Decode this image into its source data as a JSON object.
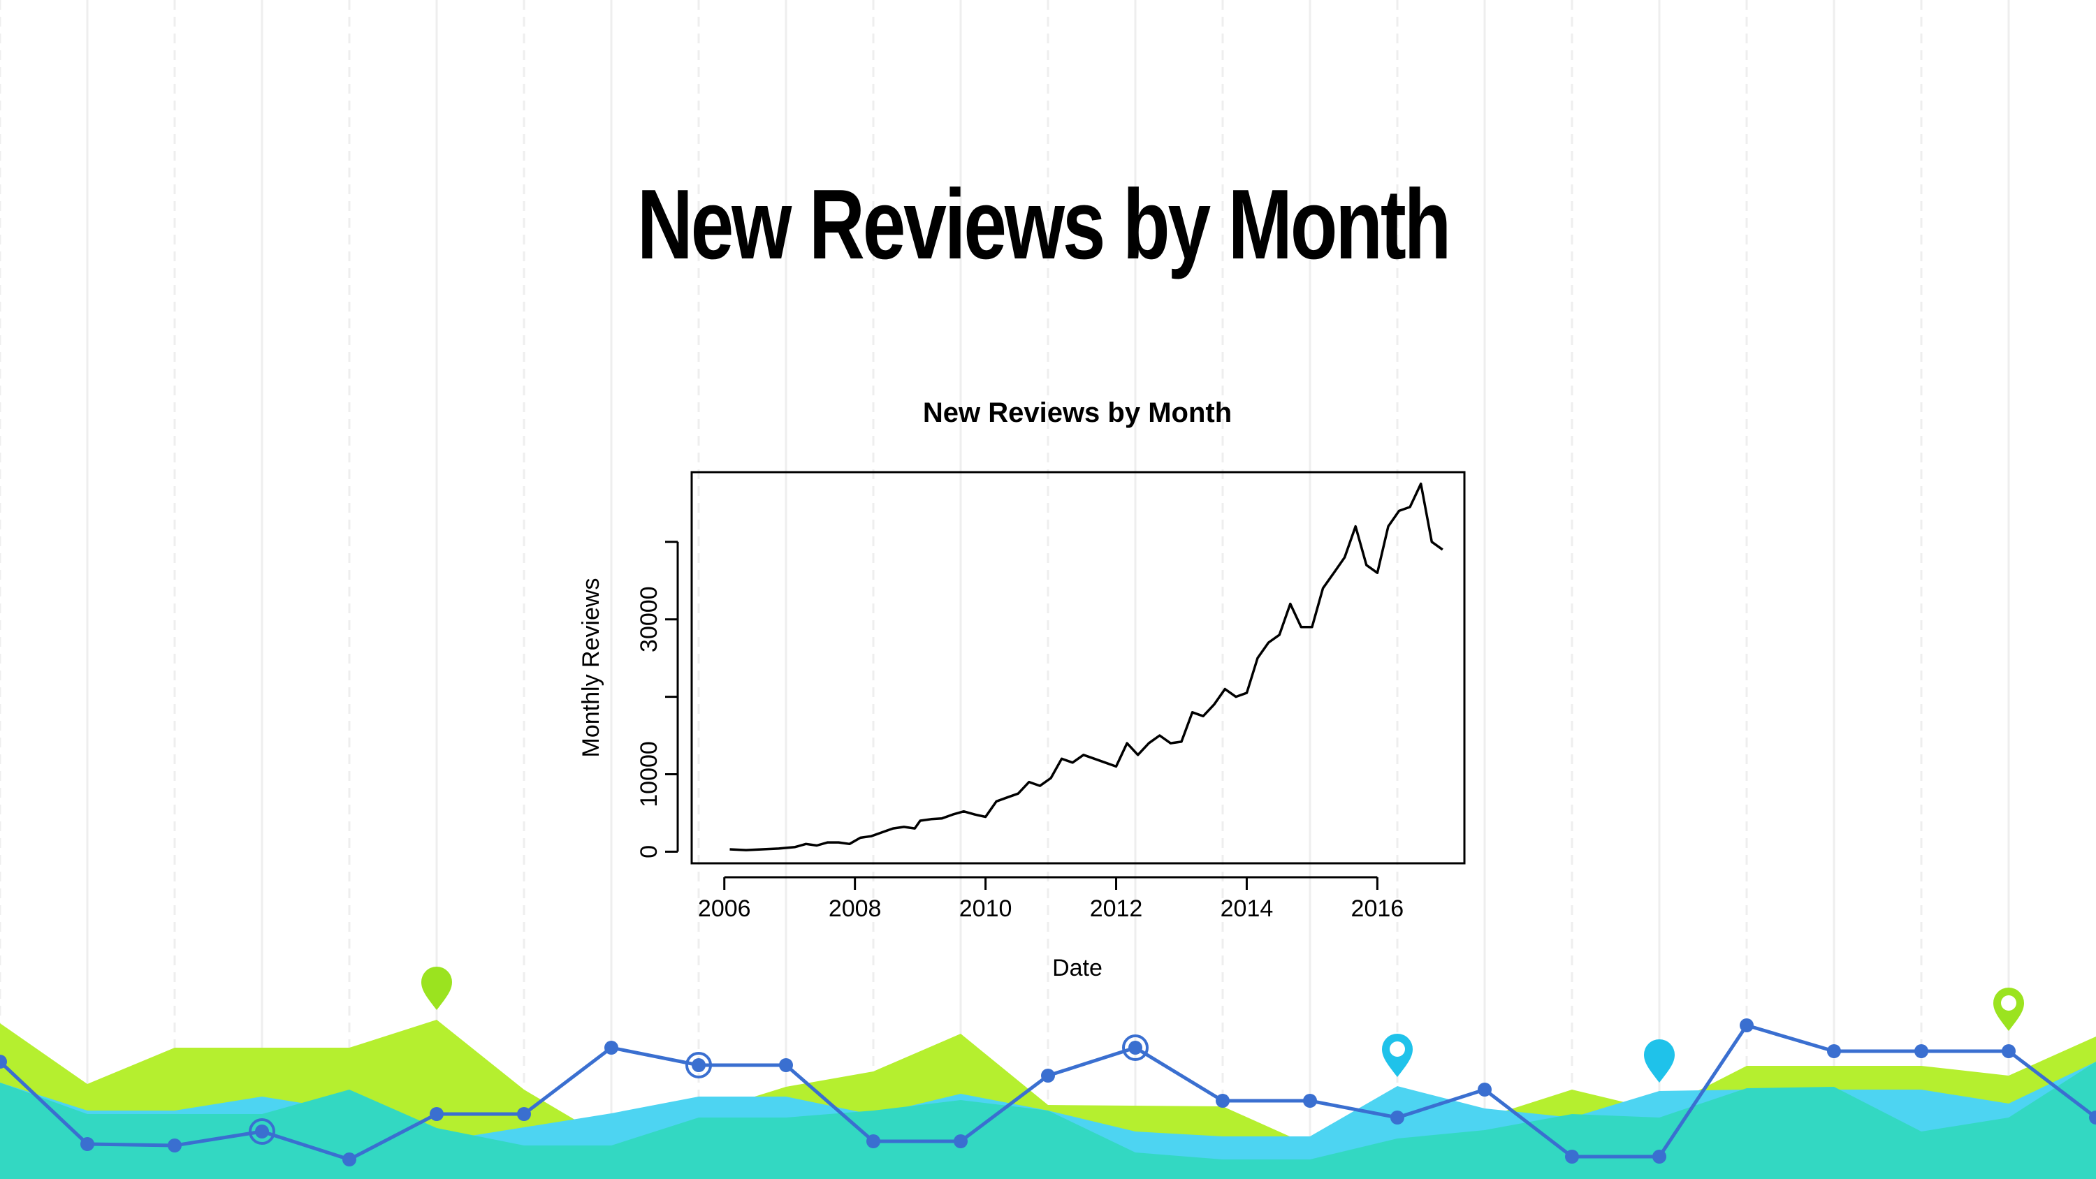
{
  "slide": {
    "title": "New Reviews by Month"
  },
  "chart_data": {
    "type": "line",
    "title": "New Reviews by Month",
    "xlabel": "Date",
    "ylabel": "Monthly Reviews",
    "x_ticks": [
      "2006",
      "2008",
      "2010",
      "2012",
      "2014",
      "2016"
    ],
    "y_ticks": [
      "0",
      "10000",
      "30000"
    ],
    "xlim": [
      "2005-07",
      "2017-05"
    ],
    "ylim": [
      -1500,
      49000
    ],
    "grid": false,
    "series": [
      {
        "color": "#000000",
        "x": [
          "2006-02",
          "2006-05",
          "2006-08",
          "2006-11",
          "2007-02",
          "2007-04",
          "2007-06",
          "2007-08",
          "2007-10",
          "2007-12",
          "2008-02",
          "2008-04",
          "2008-06",
          "2008-08",
          "2008-10",
          "2008-12",
          "2009-01",
          "2009-03",
          "2009-05",
          "2009-07",
          "2009-09",
          "2009-11",
          "2010-01",
          "2010-03",
          "2010-05",
          "2010-07",
          "2010-09",
          "2010-11",
          "2011-01",
          "2011-03",
          "2011-05",
          "2011-07",
          "2011-09",
          "2011-11",
          "2012-01",
          "2012-03",
          "2012-05",
          "2012-07",
          "2012-09",
          "2012-11",
          "2013-01",
          "2013-03",
          "2013-05",
          "2013-07",
          "2013-09",
          "2013-11",
          "2014-01",
          "2014-03",
          "2014-05",
          "2014-07",
          "2014-09",
          "2014-11",
          "2015-01",
          "2015-03",
          "2015-05",
          "2015-07",
          "2015-09",
          "2015-11",
          "2016-01",
          "2016-03",
          "2016-05",
          "2016-07",
          "2016-09",
          "2016-11",
          "2017-01"
        ],
        "y": [
          300,
          200,
          300,
          400,
          600,
          1000,
          800,
          1200,
          1200,
          1000,
          1800,
          2000,
          2500,
          3000,
          3200,
          3000,
          4000,
          4200,
          4300,
          4800,
          5200,
          4800,
          4500,
          6500,
          7000,
          7500,
          9000,
          8500,
          9500,
          12000,
          11500,
          12500,
          12000,
          11500,
          11000,
          14000,
          12500,
          14000,
          15000,
          14000,
          14200,
          18000,
          17500,
          19000,
          21000,
          20000,
          20500,
          25000,
          27000,
          28000,
          32000,
          29000,
          29000,
          34000,
          36000,
          38000,
          42000,
          37000,
          36000,
          42000,
          44000,
          44500,
          47500,
          40000,
          39000
        ]
      }
    ]
  },
  "colors": {
    "lime": "#b5ef2f",
    "teal": "#33d8c2",
    "sky": "#4dd4f2",
    "line": "#3a6fd0",
    "pin_cyan": "#1fc2ea",
    "pin_lime": "#9be31f"
  },
  "icons": [
    "map-pin-icon",
    "target-marker-icon"
  ]
}
